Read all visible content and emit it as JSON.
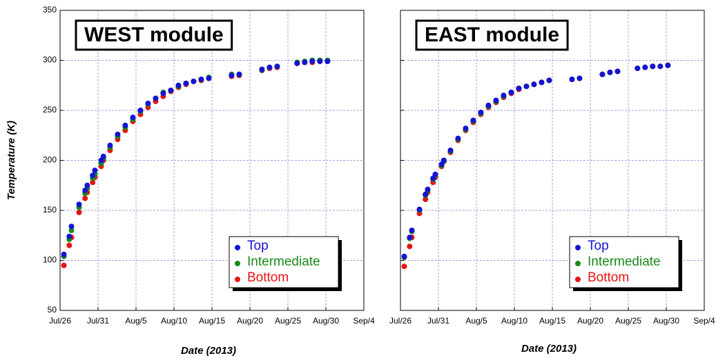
{
  "chart_data": [
    {
      "type": "scatter",
      "title": "WEST module",
      "xlabel": "Date (2013)",
      "ylabel": "Temperature (K)",
      "legend": "lower right",
      "grid": true,
      "show_ytick_labels": true,
      "xlim": [
        "2013-07-26T00:00",
        "2013-09-04T00:00"
      ],
      "xticks": [
        {
          "value": "2013-07-26T00:00",
          "label": "Jul/26"
        },
        {
          "value": "2013-07-31T00:00",
          "label": "Jul/31"
        },
        {
          "value": "2013-08-05T00:00",
          "label": "Aug/5"
        },
        {
          "value": "2013-08-10T00:00",
          "label": "Aug/10"
        },
        {
          "value": "2013-08-15T00:00",
          "label": "Aug/15"
        },
        {
          "value": "2013-08-20T00:00",
          "label": "Aug/20"
        },
        {
          "value": "2013-08-25T00:00",
          "label": "Aug/25"
        },
        {
          "value": "2013-08-30T00:00",
          "label": "Aug/30"
        },
        {
          "value": "2013-09-04T00:00",
          "label": "Sep/4"
        }
      ],
      "ylim": [
        50,
        350
      ],
      "yticks": [
        50,
        100,
        150,
        200,
        250,
        300,
        350
      ],
      "x": [
        "2013-07-26T12:00",
        "2013-07-27T05:00",
        "2013-07-27T12:00",
        "2013-07-28T12:00",
        "2013-07-29T07:00",
        "2013-07-29T14:00",
        "2013-07-30T07:00",
        "2013-07-30T14:00",
        "2013-07-31T10:00",
        "2013-07-31T17:00",
        "2013-08-01T14:00",
        "2013-08-02T14:00",
        "2013-08-03T14:00",
        "2013-08-04T14:00",
        "2013-08-05T14:00",
        "2013-08-06T14:00",
        "2013-08-07T14:00",
        "2013-08-08T14:00",
        "2013-08-09T14:00",
        "2013-08-10T14:00",
        "2013-08-11T14:00",
        "2013-08-12T14:00",
        "2013-08-13T14:00",
        "2013-08-14T14:00",
        "2013-08-17T14:00",
        "2013-08-18T14:00",
        "2013-08-21T14:00",
        "2013-08-22T14:00",
        "2013-08-23T14:00",
        "2013-08-26T05:00",
        "2013-08-27T05:00",
        "2013-08-28T05:00",
        "2013-08-29T05:00",
        "2013-08-30T05:00"
      ],
      "series": [
        {
          "name": "Top",
          "color": "#1414d2",
          "values": [
            106,
            124,
            134,
            156,
            170,
            175,
            185,
            190,
            200,
            204,
            215,
            226,
            235,
            243,
            250,
            257,
            262,
            267,
            270,
            275,
            277,
            279,
            281,
            282,
            285,
            286,
            291,
            293,
            294,
            297,
            298,
            299,
            299,
            299
          ]
        },
        {
          "name": "Intermediate",
          "color": "#1a8a1a",
          "values": [
            104,
            121,
            130,
            153,
            167,
            172,
            182,
            186,
            197,
            202,
            213,
            224,
            233,
            241,
            249,
            256,
            262,
            268,
            270,
            274,
            277,
            279,
            281,
            283,
            286,
            286,
            290,
            293,
            294,
            298,
            299,
            300,
            300,
            300
          ]
        },
        {
          "name": "Bottom",
          "color": "#e81414",
          "values": [
            95,
            115,
            123,
            148,
            162,
            168,
            178,
            183,
            194,
            200,
            210,
            221,
            230,
            239,
            246,
            253,
            259,
            264,
            269,
            273,
            276,
            279,
            280,
            282,
            284,
            285,
            290,
            292,
            293,
            297,
            298,
            298,
            299,
            299
          ]
        }
      ]
    },
    {
      "type": "scatter",
      "title": "EAST module",
      "xlabel": "Date (2013)",
      "legend": "lower right",
      "grid": true,
      "show_ytick_labels": false,
      "xlim": [
        "2013-07-26T00:00",
        "2013-09-04T00:00"
      ],
      "xticks": [
        {
          "value": "2013-07-26T00:00",
          "label": "Jul/26"
        },
        {
          "value": "2013-07-31T00:00",
          "label": "Jul/31"
        },
        {
          "value": "2013-08-05T00:00",
          "label": "Aug/5"
        },
        {
          "value": "2013-08-10T00:00",
          "label": "Aug/10"
        },
        {
          "value": "2013-08-15T00:00",
          "label": "Aug/15"
        },
        {
          "value": "2013-08-20T00:00",
          "label": "Aug/20"
        },
        {
          "value": "2013-08-25T00:00",
          "label": "Aug/25"
        },
        {
          "value": "2013-08-30T00:00",
          "label": "Aug/30"
        },
        {
          "value": "2013-09-04T00:00",
          "label": "Sep/4"
        }
      ],
      "ylim": [
        50,
        350
      ],
      "yticks": [
        50,
        100,
        150,
        200,
        250,
        300,
        350
      ],
      "x": [
        "2013-07-26T12:00",
        "2013-07-27T05:00",
        "2013-07-27T12:00",
        "2013-07-28T12:00",
        "2013-07-29T07:00",
        "2013-07-29T14:00",
        "2013-07-30T07:00",
        "2013-07-30T14:00",
        "2013-07-31T10:00",
        "2013-07-31T17:00",
        "2013-08-01T14:00",
        "2013-08-02T14:00",
        "2013-08-03T14:00",
        "2013-08-04T14:00",
        "2013-08-05T14:00",
        "2013-08-06T14:00",
        "2013-08-07T14:00",
        "2013-08-08T14:00",
        "2013-08-09T14:00",
        "2013-08-10T14:00",
        "2013-08-11T14:00",
        "2013-08-12T14:00",
        "2013-08-13T14:00",
        "2013-08-14T14:00",
        "2013-08-17T14:00",
        "2013-08-18T14:00",
        "2013-08-21T14:00",
        "2013-08-22T14:00",
        "2013-08-23T14:00",
        "2013-08-26T05:00",
        "2013-08-27T05:00",
        "2013-08-28T05:00",
        "2013-08-29T05:00",
        "2013-08-30T05:00"
      ],
      "series": [
        {
          "name": "Top",
          "color": "#1414d2",
          "values": [
            104,
            123,
            130,
            151,
            166,
            171,
            182,
            186,
            196,
            200,
            210,
            222,
            232,
            240,
            248,
            255,
            260,
            265,
            268,
            272,
            274,
            276,
            278,
            280,
            281,
            282,
            286,
            288,
            289,
            292,
            293,
            294,
            294,
            295
          ]
        },
        {
          "name": "Intermediate",
          "color": "#1a8a1a",
          "values": [
            103,
            122,
            129,
            150,
            165,
            170,
            181,
            185,
            195,
            199,
            209,
            221,
            231,
            239,
            247,
            254,
            259,
            264,
            268,
            272,
            274,
            276,
            278,
            280,
            281,
            282,
            286,
            288,
            289,
            292,
            293,
            294,
            294,
            295
          ]
        },
        {
          "name": "Bottom",
          "color": "#e81414",
          "values": [
            94,
            114,
            123,
            147,
            161,
            168,
            178,
            183,
            194,
            199,
            208,
            220,
            230,
            238,
            246,
            253,
            258,
            263,
            267,
            271,
            274,
            276,
            278,
            280,
            281,
            282,
            286,
            288,
            289,
            292,
            293,
            294,
            294,
            295
          ]
        }
      ]
    }
  ]
}
